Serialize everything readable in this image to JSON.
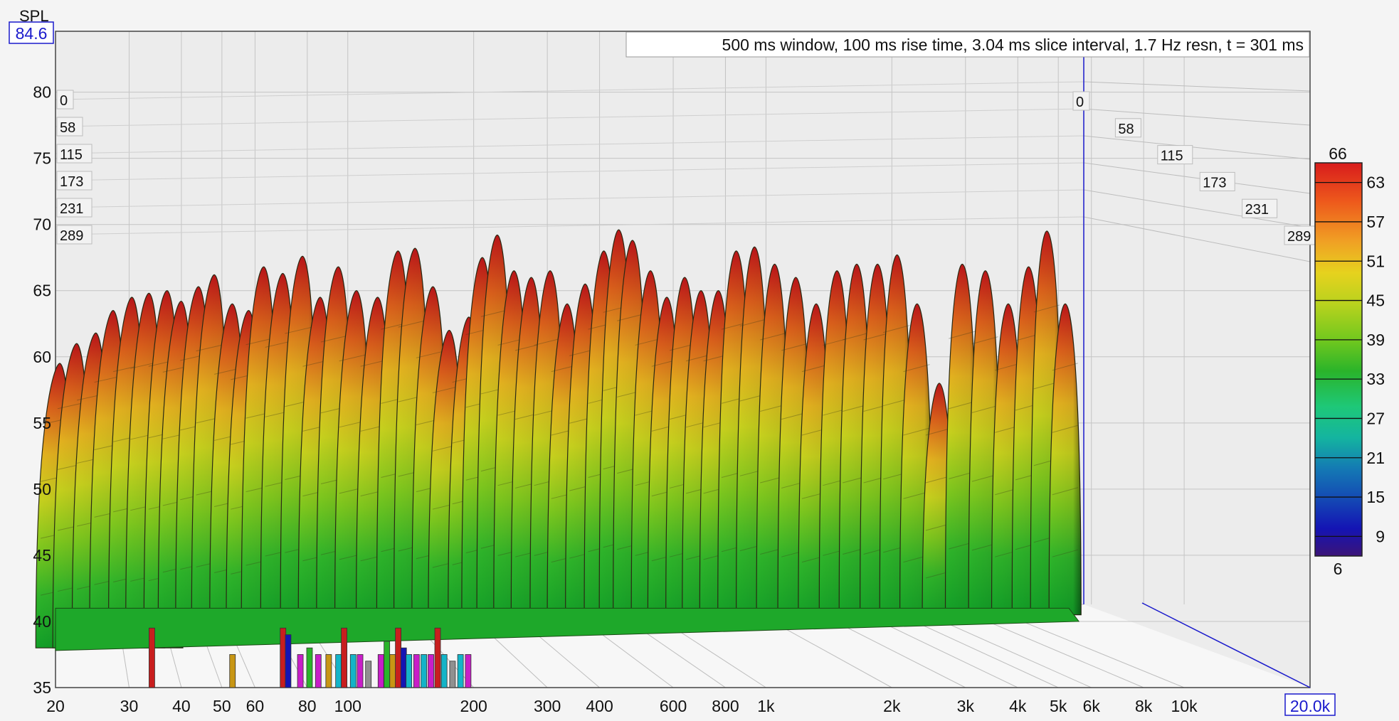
{
  "chart_data": {
    "type": "waterfall",
    "title": "500 ms window, 100 ms rise time, 3.04 ms slice interval, 1.7 Hz resn, t = 301 ms",
    "ylabel": "SPL",
    "y_cursor_value": "84.6",
    "x_cursor_value": "20.0k",
    "x_scale": "log",
    "xlim": [
      20,
      20000
    ],
    "ylim": [
      35,
      84.6
    ],
    "x_ticks": [
      {
        "value": 20,
        "label": "20"
      },
      {
        "value": 30,
        "label": "30"
      },
      {
        "value": 40,
        "label": "40"
      },
      {
        "value": 50,
        "label": "50"
      },
      {
        "value": 60,
        "label": "60"
      },
      {
        "value": 80,
        "label": "80"
      },
      {
        "value": 100,
        "label": "100"
      },
      {
        "value": 200,
        "label": "200"
      },
      {
        "value": 300,
        "label": "300"
      },
      {
        "value": 400,
        "label": "400"
      },
      {
        "value": 600,
        "label": "600"
      },
      {
        "value": 800,
        "label": "800"
      },
      {
        "value": 1000,
        "label": "1k"
      },
      {
        "value": 2000,
        "label": "2k"
      },
      {
        "value": 3000,
        "label": "3k"
      },
      {
        "value": 4000,
        "label": "4k"
      },
      {
        "value": 5000,
        "label": "5k"
      },
      {
        "value": 6000,
        "label": "6k"
      },
      {
        "value": 8000,
        "label": "8k"
      },
      {
        "value": 10000,
        "label": "10k"
      }
    ],
    "y_ticks": [
      {
        "value": 80,
        "label": "80"
      },
      {
        "value": 75,
        "label": "75"
      },
      {
        "value": 70,
        "label": "70"
      },
      {
        "value": 65,
        "label": "65"
      },
      {
        "value": 60,
        "label": "60"
      },
      {
        "value": 55,
        "label": "55"
      },
      {
        "value": 50,
        "label": "50"
      },
      {
        "value": 45,
        "label": "45"
      },
      {
        "value": 40,
        "label": "40"
      },
      {
        "value": 35,
        "label": "35"
      }
    ],
    "time_ticks_ms": [
      "0",
      "58",
      "115",
      "173",
      "231",
      "289"
    ],
    "colorbar": {
      "max_label": "66",
      "min_label": "6",
      "ticks": [
        "63",
        "57",
        "51",
        "45",
        "39",
        "33",
        "27",
        "21",
        "15",
        "9"
      ],
      "colors": [
        "#d81c1c",
        "#ee5a1c",
        "#f0a024",
        "#e6d21e",
        "#b8d21e",
        "#72c81e",
        "#2ab42a",
        "#1ec878",
        "#14b4a0",
        "#1478b4",
        "#1446b4",
        "#1414b4",
        "#3c1478"
      ]
    },
    "ridges": [
      {
        "freq": 20.5,
        "peak": 59.5,
        "base": 38
      },
      {
        "freq": 22.5,
        "peak": 61.0,
        "base": 38
      },
      {
        "freq": 25,
        "peak": 61.8,
        "base": 38
      },
      {
        "freq": 27.5,
        "peak": 63.5,
        "base": 38
      },
      {
        "freq": 30.5,
        "peak": 64.5,
        "base": 38
      },
      {
        "freq": 33.5,
        "peak": 64.8,
        "base": 38
      },
      {
        "freq": 37,
        "peak": 65.0,
        "base": 38
      },
      {
        "freq": 40,
        "peak": 64.2,
        "base": 39
      },
      {
        "freq": 44,
        "peak": 65.3,
        "base": 39
      },
      {
        "freq": 48,
        "peak": 66.2,
        "base": 39
      },
      {
        "freq": 53,
        "peak": 64.0,
        "base": 39
      },
      {
        "freq": 58,
        "peak": 63.5,
        "base": 39
      },
      {
        "freq": 63,
        "peak": 66.8,
        "base": 39
      },
      {
        "freq": 70,
        "peak": 66.3,
        "base": 40
      },
      {
        "freq": 78,
        "peak": 67.6,
        "base": 40
      },
      {
        "freq": 86,
        "peak": 64.5,
        "base": 40
      },
      {
        "freq": 95,
        "peak": 66.8,
        "base": 40
      },
      {
        "freq": 105,
        "peak": 65.0,
        "base": 40
      },
      {
        "freq": 118,
        "peak": 64.5,
        "base": 40
      },
      {
        "freq": 132,
        "peak": 68.0,
        "base": 40
      },
      {
        "freq": 145,
        "peak": 68.2,
        "base": 40
      },
      {
        "freq": 160,
        "peak": 65.3,
        "base": 40
      },
      {
        "freq": 175,
        "peak": 62.0,
        "base": 40
      },
      {
        "freq": 195,
        "peak": 63.0,
        "base": 40
      },
      {
        "freq": 210,
        "peak": 67.5,
        "base": 40
      },
      {
        "freq": 228,
        "peak": 69.2,
        "base": 40
      },
      {
        "freq": 250,
        "peak": 66.5,
        "base": 40
      },
      {
        "freq": 275,
        "peak": 66.0,
        "base": 40
      },
      {
        "freq": 305,
        "peak": 66.5,
        "base": 40
      },
      {
        "freq": 335,
        "peak": 64.0,
        "base": 40
      },
      {
        "freq": 370,
        "peak": 65.5,
        "base": 40
      },
      {
        "freq": 410,
        "peak": 68.0,
        "base": 40
      },
      {
        "freq": 445,
        "peak": 69.6,
        "base": 40
      },
      {
        "freq": 480,
        "peak": 68.8,
        "base": 40
      },
      {
        "freq": 530,
        "peak": 66.5,
        "base": 40
      },
      {
        "freq": 580,
        "peak": 64.5,
        "base": 40
      },
      {
        "freq": 640,
        "peak": 66.0,
        "base": 40
      },
      {
        "freq": 700,
        "peak": 65.0,
        "base": 40
      },
      {
        "freq": 770,
        "peak": 65.0,
        "base": 40
      },
      {
        "freq": 850,
        "peak": 68.0,
        "base": 40
      },
      {
        "freq": 940,
        "peak": 68.3,
        "base": 40
      },
      {
        "freq": 1050,
        "peak": 67.0,
        "base": 40
      },
      {
        "freq": 1180,
        "peak": 66.0,
        "base": 40
      },
      {
        "freq": 1320,
        "peak": 64.0,
        "base": 40
      },
      {
        "freq": 1480,
        "peak": 66.5,
        "base": 40
      },
      {
        "freq": 1650,
        "peak": 67.0,
        "base": 40
      },
      {
        "freq": 1850,
        "peak": 67.0,
        "base": 40
      },
      {
        "freq": 2060,
        "peak": 67.7,
        "base": 40
      },
      {
        "freq": 2300,
        "peak": 64.0,
        "base": 40
      },
      {
        "freq": 2600,
        "peak": 58.0,
        "base": 40
      },
      {
        "freq": 2950,
        "peak": 67.0,
        "base": 40.5
      },
      {
        "freq": 3350,
        "peak": 66.5,
        "base": 40.5
      },
      {
        "freq": 3800,
        "peak": 64.0,
        "base": 40.5
      },
      {
        "freq": 4250,
        "peak": 66.8,
        "base": 40.5
      },
      {
        "freq": 4700,
        "peak": 69.5,
        "base": 40.5
      },
      {
        "freq": 5200,
        "peak": 64.0,
        "base": 40.5
      }
    ],
    "low_freq_markers": [
      {
        "freq": 34,
        "color": "#c81e1e",
        "level": 39.5
      },
      {
        "freq": 53,
        "color": "#c89614",
        "level": 37.5
      },
      {
        "freq": 70,
        "color": "#c81e1e",
        "level": 39.5
      },
      {
        "freq": 72,
        "color": "#1414b4",
        "level": 39.0
      },
      {
        "freq": 77,
        "color": "#c81ec8",
        "level": 37.5
      },
      {
        "freq": 81,
        "color": "#2ab42a",
        "level": 38.0
      },
      {
        "freq": 85,
        "color": "#c81ec8",
        "level": 37.5
      },
      {
        "freq": 90,
        "color": "#c89614",
        "level": 37.5
      },
      {
        "freq": 95,
        "color": "#14b4c8",
        "level": 37.5
      },
      {
        "freq": 98,
        "color": "#c81e1e",
        "level": 39.5
      },
      {
        "freq": 103,
        "color": "#14b4c8",
        "level": 37.5
      },
      {
        "freq": 107,
        "color": "#c81ec8",
        "level": 37.5
      },
      {
        "freq": 112,
        "color": "#909090",
        "level": 37.0
      },
      {
        "freq": 120,
        "color": "#c81ec8",
        "level": 37.5
      },
      {
        "freq": 124,
        "color": "#2ab42a",
        "level": 38.5
      },
      {
        "freq": 128,
        "color": "#c89614",
        "level": 37.5
      },
      {
        "freq": 132,
        "color": "#c81e1e",
        "level": 39.5
      },
      {
        "freq": 136,
        "color": "#1414b4",
        "level": 38.0
      },
      {
        "freq": 140,
        "color": "#14b4c8",
        "level": 37.5
      },
      {
        "freq": 146,
        "color": "#c81ec8",
        "level": 37.5
      },
      {
        "freq": 152,
        "color": "#14b4c8",
        "level": 37.5
      },
      {
        "freq": 158,
        "color": "#c81ec8",
        "level": 37.5
      },
      {
        "freq": 164,
        "color": "#c81e1e",
        "level": 39.5
      },
      {
        "freq": 170,
        "color": "#14b4c8",
        "level": 37.5
      },
      {
        "freq": 178,
        "color": "#909090",
        "level": 37.0
      },
      {
        "freq": 186,
        "color": "#14b4c8",
        "level": 37.5
      },
      {
        "freq": 194,
        "color": "#c81ec8",
        "level": 37.5
      }
    ]
  }
}
